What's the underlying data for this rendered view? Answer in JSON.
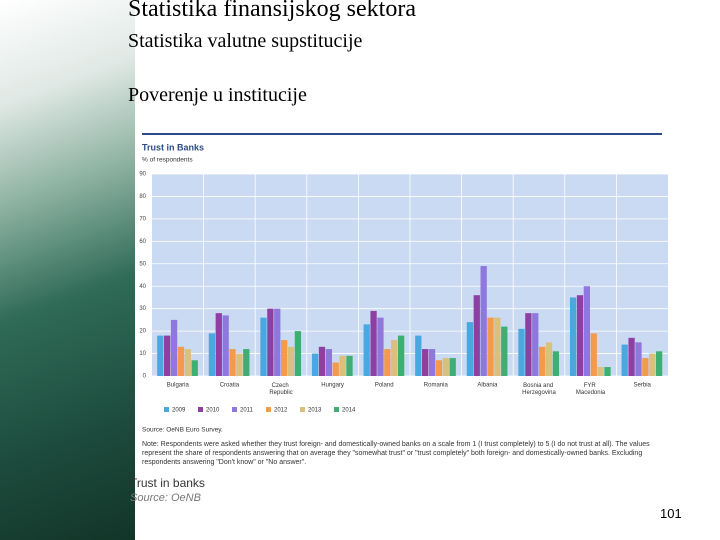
{
  "slide": {
    "title": "Statistika finansijskog sektora",
    "subtitle": "Statistika valutne supstitucije",
    "heading": "Poverenje u institucije",
    "caption": "Trust in banks",
    "caption_source": "Source: OeNB",
    "page_number": "101"
  },
  "chart_data": {
    "type": "bar",
    "title": "Trust in Banks",
    "y_label": "% of respondents",
    "categories": [
      "Bulgaria",
      "Croatia",
      "Czech Republic",
      "Hungary",
      "Poland",
      "Romania",
      "Albania",
      "Bosnia and Herzegovina",
      "FYR Macedonia",
      "Serbia"
    ],
    "series": [
      {
        "name": "2009",
        "color": "#4aa8e0",
        "values": [
          18,
          19,
          26,
          10,
          23,
          18,
          24,
          21,
          35,
          14
        ]
      },
      {
        "name": "2010",
        "color": "#8e3fa3",
        "values": [
          18,
          28,
          30,
          13,
          29,
          12,
          36,
          28,
          36,
          17
        ]
      },
      {
        "name": "2011",
        "color": "#8f78dc",
        "values": [
          25,
          27,
          30,
          12,
          26,
          12,
          49,
          28,
          40,
          15
        ]
      },
      {
        "name": "2012",
        "color": "#f39a4c",
        "values": [
          13,
          12,
          16,
          6,
          12,
          7,
          26,
          13,
          19,
          8
        ]
      },
      {
        "name": "2013",
        "color": "#d9c07e",
        "values": [
          12,
          10,
          13,
          9,
          16,
          8,
          26,
          15,
          4,
          10
        ]
      },
      {
        "name": "2014",
        "color": "#3fae72",
        "values": [
          7,
          12,
          20,
          9,
          18,
          8,
          22,
          11,
          4,
          11
        ]
      }
    ],
    "ylim": [
      0,
      90
    ],
    "yticks": [
      0,
      10,
      20,
      30,
      40,
      50,
      60,
      70,
      80,
      90
    ],
    "grid": true,
    "source": "Source: OeNB Euro Survey.",
    "note": "Note: Respondents were asked whether they trust foreign- and domestically-owned banks on a scale from 1 (I trust completely) to 5 (I do not trust at all). The values represent the share of respondents answering that on average they \"somewhat trust\" or \"trust completely\" both foreign- and domestically-owned banks. Excluding respondents answering \"Don't know\" or \"No answer\"."
  }
}
